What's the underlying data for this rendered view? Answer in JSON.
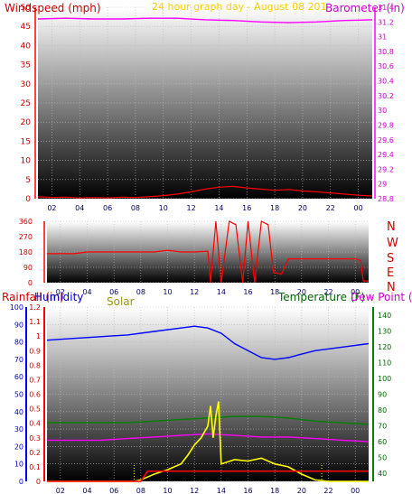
{
  "header": {
    "windspeed_label": "Windspeed (mph)",
    "graph_title": "24 hour graph day - August 08 201",
    "barometer_label": "Barometer (in)"
  },
  "direction_letters": [
    "N",
    "W",
    "S",
    "E",
    "N"
  ],
  "bottom_labels": {
    "rainfall": "Rainfall (in)",
    "humidity": "Humidity",
    "solar": "Solar",
    "temperature": "Temperature (F)",
    "dew_point": "Dew Point ("
  },
  "colors": {
    "windspeed": "#ff0000",
    "gust": "#cc0000",
    "wind_avg": "#008000",
    "barometer": "#ff00ff",
    "direction": "#ff0000",
    "humidity": "#0000ff",
    "temperature": "#008000",
    "dew_point": "#ff00ff",
    "solar": "#ffff00",
    "rainfall": "#ff0000",
    "title": "#ffcc00",
    "label_red": "#cc0000",
    "label_blue": "#0000cc",
    "label_green": "#006600",
    "label_magenta": "#cc00cc",
    "label_solar": "#999900"
  },
  "chart_data": [
    {
      "type": "line",
      "x_ticks": [
        "02",
        "04",
        "06",
        "08",
        "10",
        "12",
        "14",
        "16",
        "18",
        "20",
        "22",
        "00"
      ],
      "left_axis": {
        "ticks": [
          "0",
          "5",
          "10",
          "15",
          "20",
          "25",
          "30",
          "35",
          "40",
          "45",
          "50"
        ],
        "ylim": [
          0,
          50
        ]
      },
      "right_axis": {
        "ticks": [
          "28.8",
          "29",
          "29.2",
          "29.4",
          "29.6",
          "29.8",
          "30",
          "30.2",
          "30.4",
          "30.6",
          "30.8",
          "31",
          "31.2",
          "31.4"
        ],
        "ylim": [
          28.8,
          31.4
        ]
      },
      "series": [
        {
          "name": "Windspeed (mph)",
          "x": [
            0,
            1,
            2,
            3,
            4,
            5,
            6,
            7,
            8,
            9,
            10,
            11,
            12,
            13,
            14,
            15,
            16,
            17,
            18,
            19,
            20,
            21,
            22,
            23,
            24
          ],
          "values": [
            0.5,
            0.3,
            0.4,
            0.2,
            0.3,
            0.2,
            0.4,
            0.3,
            0.5,
            0.8,
            1.2,
            1.8,
            2.5,
            3,
            3.2,
            2.8,
            2.5,
            2.2,
            2.4,
            2,
            1.8,
            1.5,
            1.2,
            0.9,
            0.7
          ]
        },
        {
          "name": "Barometer (in)",
          "x": [
            0,
            2,
            4,
            6,
            8,
            10,
            12,
            14,
            16,
            18,
            20,
            22,
            24
          ],
          "values": [
            31.24,
            31.25,
            31.24,
            31.24,
            31.25,
            31.25,
            31.23,
            31.22,
            31.2,
            31.19,
            31.2,
            31.22,
            31.23
          ]
        }
      ]
    },
    {
      "type": "line",
      "x_ticks": [
        "02",
        "04",
        "06",
        "08",
        "10",
        "12",
        "14",
        "16",
        "18",
        "20",
        "22",
        "00"
      ],
      "left_axis": {
        "ticks": [
          "0",
          "90",
          "180",
          "270",
          "360"
        ],
        "ylim": [
          0,
          360
        ]
      },
      "series": [
        {
          "name": "Wind direction",
          "x": [
            0,
            0.5,
            2,
            3,
            5,
            6,
            7,
            8,
            9,
            10,
            11,
            12,
            12.2,
            12.6,
            13,
            13.6,
            14.1,
            14.6,
            15,
            15.5,
            16,
            16.5,
            16.9,
            17.5,
            18,
            19,
            20,
            21,
            22,
            23,
            23.4,
            23.6,
            24
          ],
          "values": [
            170,
            170,
            170,
            180,
            180,
            180,
            180,
            180,
            190,
            180,
            180,
            185,
            0,
            360,
            0,
            360,
            340,
            0,
            360,
            0,
            360,
            340,
            60,
            50,
            140,
            140,
            140,
            140,
            140,
            140,
            130,
            10,
            10
          ]
        }
      ]
    },
    {
      "type": "line",
      "x_ticks": [
        "02",
        "04",
        "06",
        "08",
        "10",
        "12",
        "14",
        "16",
        "18",
        "20",
        "22",
        "00"
      ],
      "left_axis_rain": {
        "ticks": [
          "0",
          "0.1",
          "0.2",
          "0.3",
          "0.4",
          "0.5",
          "0.6",
          "0.7",
          "0.8",
          "0.9",
          "1",
          "1.1",
          "1.2"
        ],
        "ylim": [
          0,
          1.2
        ]
      },
      "left_axis_humidity": {
        "ticks": [
          "0",
          "10",
          "20",
          "30",
          "40",
          "50",
          "60",
          "70",
          "80",
          "90",
          "100"
        ],
        "ylim": [
          0,
          100
        ]
      },
      "right_axis": {
        "ticks": [
          "40",
          "50",
          "60",
          "70",
          "80",
          "90",
          "100",
          "110",
          "120",
          "130",
          "140"
        ],
        "ylim": [
          35,
          145
        ]
      },
      "series": [
        {
          "name": "Humidity",
          "x": [
            0,
            2,
            4,
            6,
            8,
            10,
            11,
            12,
            13,
            14,
            15,
            16,
            17,
            18,
            19,
            20,
            22,
            24
          ],
          "values": [
            81,
            82,
            83,
            84,
            86,
            88,
            89,
            88,
            85,
            79,
            75,
            71,
            70,
            71,
            73,
            75,
            77,
            79
          ]
        },
        {
          "name": "Temperature",
          "x": [
            0,
            2,
            4,
            6,
            8,
            10,
            12,
            14,
            16,
            18,
            20,
            22,
            24
          ],
          "values": [
            72,
            72,
            72,
            72,
            73,
            74,
            75,
            76,
            76,
            75,
            73,
            72,
            71
          ]
        },
        {
          "name": "Dew Point",
          "x": [
            0,
            2,
            4,
            6,
            8,
            10,
            12,
            14,
            16,
            18,
            20,
            22,
            24
          ],
          "values": [
            61,
            61,
            61,
            62,
            63,
            64,
            65,
            64,
            63,
            63,
            62,
            61,
            60
          ]
        },
        {
          "name": "Solar",
          "x": [
            0,
            6.5,
            7,
            7.5,
            8,
            9,
            10,
            10.5,
            11,
            11.5,
            12,
            12.2,
            12.4,
            12.6,
            12.8,
            13,
            14,
            15,
            16,
            17,
            18,
            19,
            20,
            21,
            24
          ],
          "values": [
            0,
            0,
            0.01,
            0.03,
            0.05,
            0.08,
            0.12,
            0.18,
            0.25,
            0.3,
            0.38,
            0.52,
            0.3,
            0.45,
            0.55,
            0.12,
            0.15,
            0.14,
            0.16,
            0.12,
            0.1,
            0.05,
            0.01,
            0,
            0
          ]
        },
        {
          "name": "Rainfall",
          "x": [
            0,
            7,
            7.5,
            23.9,
            24
          ],
          "values": [
            0,
            0,
            0.07,
            0.07,
            0.07
          ]
        }
      ]
    }
  ]
}
